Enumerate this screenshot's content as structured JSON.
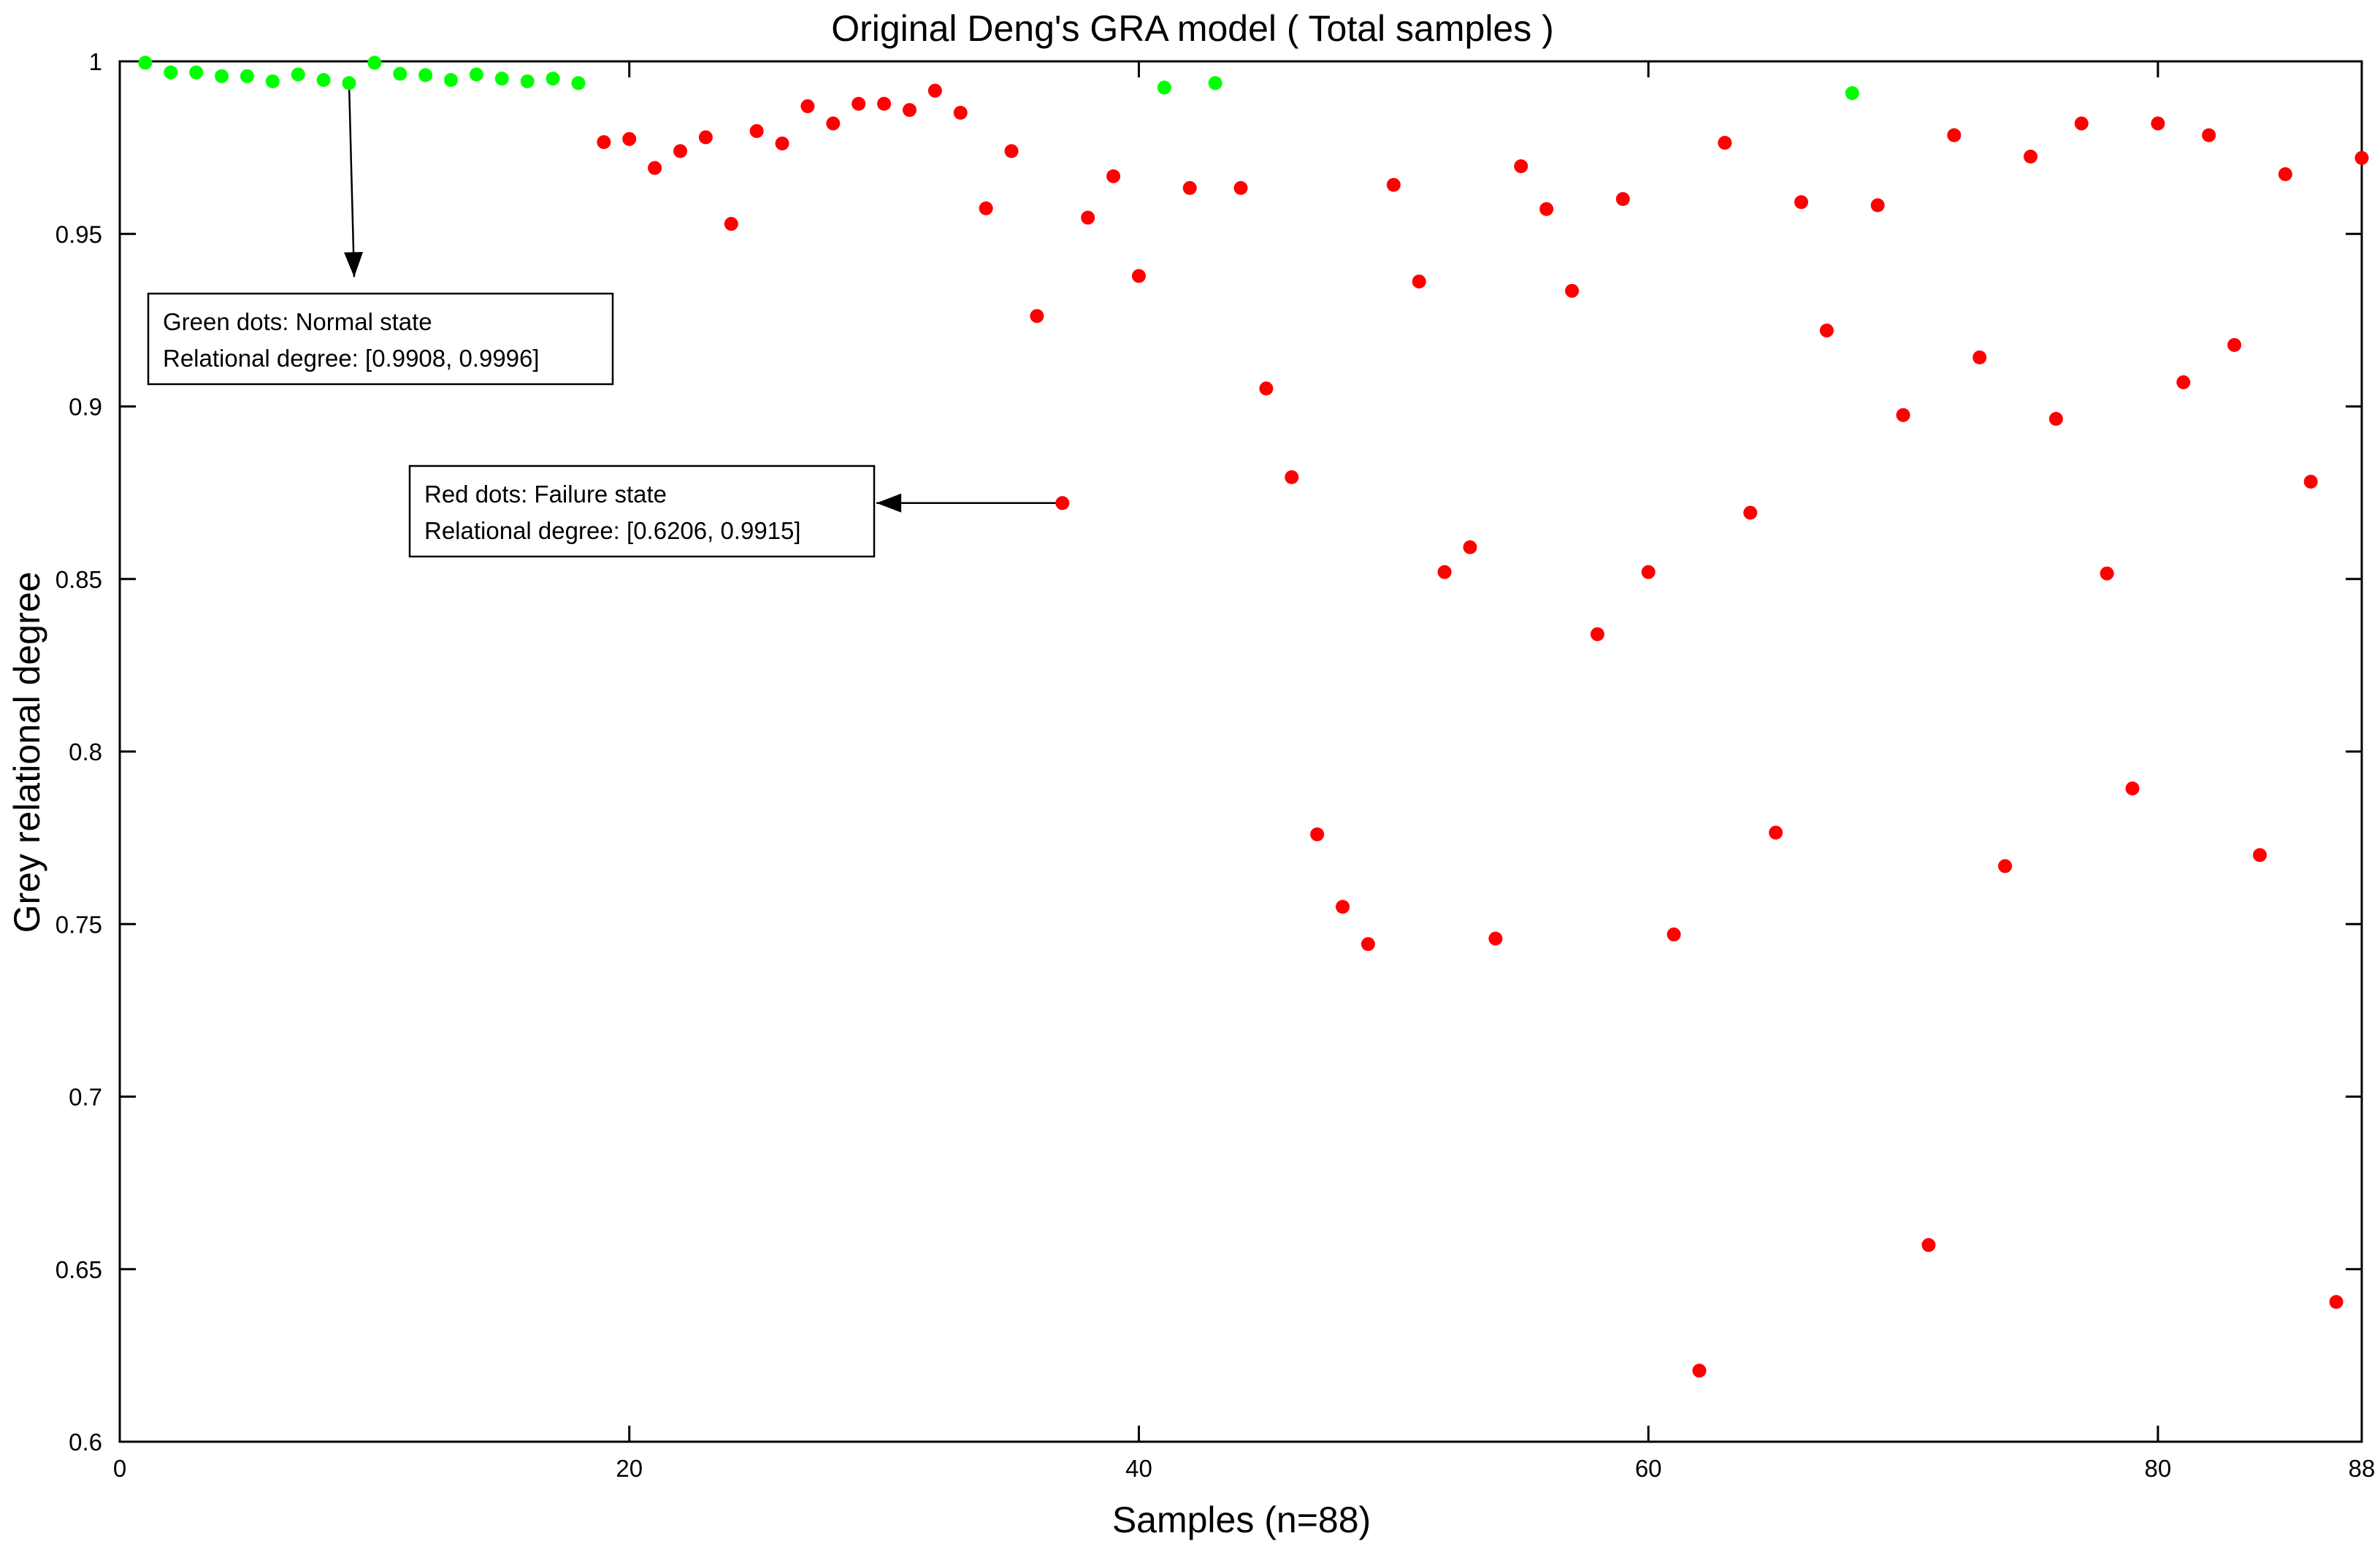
{
  "chart_data": {
    "type": "scatter",
    "title": "Original Deng's GRA model ( Total samples )",
    "xlabel": "Samples (n=88)",
    "ylabel": "Grey relational degree",
    "xlim": [
      0,
      88
    ],
    "ylim": [
      0.6,
      1.0
    ],
    "x_ticks": [
      0,
      20,
      40,
      60,
      80,
      88
    ],
    "x_tick_labels": [
      "0",
      "20",
      "40",
      "60",
      "80",
      "88"
    ],
    "y_ticks": [
      0.6,
      0.65,
      0.7,
      0.75,
      0.8,
      0.85,
      0.9,
      0.95,
      1.0
    ],
    "y_tick_labels": [
      "0.6",
      "0.65",
      "0.7",
      "0.75",
      "0.8",
      "0.85",
      "0.9",
      "0.95",
      "1"
    ],
    "grid": false,
    "series": [
      {
        "color": "#00ff00",
        "x": [
          1,
          2,
          3,
          4,
          5,
          6,
          7,
          8,
          9,
          10,
          11,
          12,
          13,
          14,
          15,
          16,
          17,
          18,
          41,
          43,
          68
        ],
        "y": [
          0.9996,
          0.9968,
          0.9968,
          0.9957,
          0.9957,
          0.9942,
          0.9962,
          0.9946,
          0.9937,
          0.9996,
          0.9964,
          0.996,
          0.9946,
          0.9962,
          0.995,
          0.9942,
          0.995,
          0.9937,
          0.9924,
          0.9937,
          0.9908
        ]
      },
      {
        "color": "#ff0000",
        "x": [
          19,
          20,
          21,
          22,
          23,
          24,
          25,
          26,
          27,
          28,
          29,
          30,
          31,
          32,
          33,
          34,
          35,
          36,
          37,
          38,
          39,
          40,
          42,
          44,
          45,
          46,
          47,
          48,
          49,
          50,
          51,
          52,
          53,
          54,
          55,
          56,
          57,
          58,
          59,
          60,
          61,
          62,
          63,
          64,
          65,
          66,
          67,
          69,
          70,
          71,
          72,
          73,
          74,
          75,
          76,
          77,
          78,
          79,
          80,
          81,
          82,
          83,
          84,
          85,
          86,
          87,
          88
        ],
        "y": [
          0.9766,
          0.9775,
          0.9691,
          0.974,
          0.978,
          0.9529,
          0.9798,
          0.9762,
          0.987,
          0.982,
          0.9877,
          0.9877,
          0.9859,
          0.9915,
          0.9851,
          0.9574,
          0.974,
          0.9262,
          0.872,
          0.9547,
          0.9667,
          0.9378,
          0.9633,
          0.9633,
          0.9052,
          0.8795,
          0.776,
          0.755,
          0.7442,
          0.9642,
          0.9362,
          0.852,
          0.8592,
          0.7458,
          0.9696,
          0.9572,
          0.9335,
          0.834,
          0.9601,
          0.852,
          0.747,
          0.6206,
          0.9764,
          0.8692,
          0.7765,
          0.9592,
          0.922,
          0.9583,
          0.8975,
          0.657,
          0.9786,
          0.9142,
          0.7668,
          0.9724,
          0.8964,
          0.982,
          0.8516,
          0.7893,
          0.982,
          0.907,
          0.9786,
          0.9178,
          0.77,
          0.9673,
          0.8782,
          0.6405,
          0.972
        ]
      }
    ],
    "annotations": [
      {
        "lines": [
          "Green dots: Normal state",
          "Relational degree: [0.9908, 0.9996]"
        ],
        "arrow_from": [
          9,
          0.9937
        ],
        "arrow_to": [
          9.2,
          0.9375
        ]
      },
      {
        "lines": [
          "Red dots: Failure state",
          "Relational degree: [0.6206, 0.9915]"
        ],
        "arrow_from": [
          37,
          0.872
        ],
        "arrow_to": [
          29.7,
          0.872
        ]
      }
    ]
  }
}
